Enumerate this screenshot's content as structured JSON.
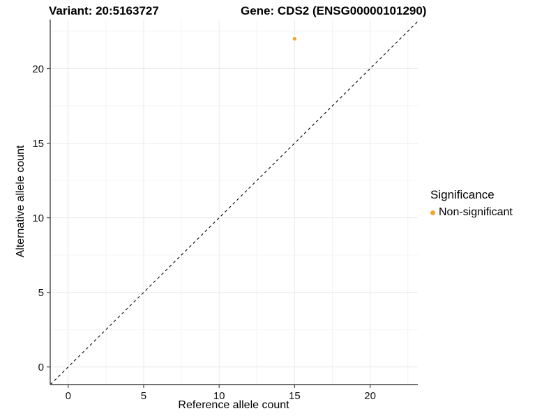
{
  "header": {
    "variant_title": "Variant: 20:5163727",
    "gene_title": "Gene: CDS2 (ENSG00000101290)"
  },
  "legend": {
    "title": "Significance",
    "items": [
      {
        "label": "Non-significant",
        "color": "#F9A32C",
        "marker": "circle"
      }
    ]
  },
  "chart_data": {
    "type": "scatter",
    "xlabel": "Reference allele count",
    "ylabel": "Alternative allele count",
    "xlim": [
      -1.19,
      23.16
    ],
    "ylim": [
      -1.18,
      23.29
    ],
    "x_ticks": [
      0,
      5,
      10,
      15,
      20
    ],
    "y_ticks": [
      0,
      5,
      10,
      15,
      20
    ],
    "x_minor": [
      2.5,
      7.5,
      12.5,
      17.5,
      22.5
    ],
    "y_minor": [
      2.5,
      7.5,
      12.5,
      17.5,
      22.5
    ],
    "grid": "major+minor",
    "legend_position": "right",
    "series": [
      {
        "name": "Non-significant",
        "color": "#F9A32C",
        "points": [
          {
            "x": 15,
            "y": 22
          }
        ]
      }
    ],
    "reference_line": {
      "kind": "identity",
      "dashed": true,
      "color": "#000000"
    },
    "style": {
      "axis_color": "#444444",
      "major_grid_color": "#e9e9e9",
      "minor_grid_color": "#f4f4f4",
      "point_radius_px": 2.7,
      "background": "#ffffff"
    }
  }
}
